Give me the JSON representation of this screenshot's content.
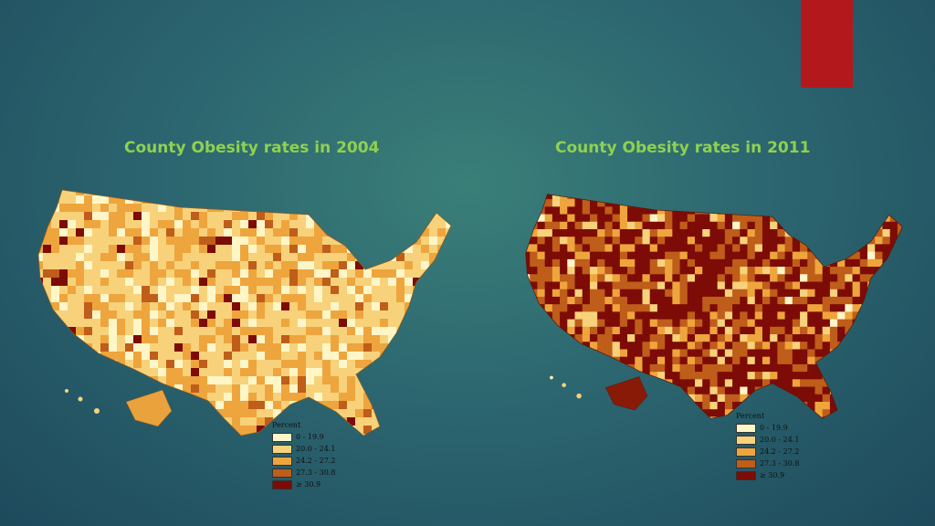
{
  "slide": {
    "accent_color": "#b3191c",
    "title_color": "#8fd14f"
  },
  "maps": [
    {
      "title": "County Obesity rates in 2004",
      "base_color": "#f1b045",
      "dominant": [
        0.18,
        0.42,
        0.3,
        0.07,
        0.03
      ]
    },
    {
      "title": "County Obesity rates in 2011",
      "base_color": "#c65f18",
      "dominant": [
        0.02,
        0.07,
        0.16,
        0.3,
        0.45
      ]
    }
  ],
  "legend": {
    "heading": "Percent",
    "items": [
      {
        "label": "0 - 19.9",
        "color": "#fff6c8"
      },
      {
        "label": "20.0 - 24.1",
        "color": "#f7d27a"
      },
      {
        "label": "24.2 - 27.2",
        "color": "#eea53d"
      },
      {
        "label": "27.3 - 30.8",
        "color": "#bf5d1a"
      },
      {
        "label": "≥ 30.9",
        "color": "#7d0b06"
      }
    ]
  }
}
